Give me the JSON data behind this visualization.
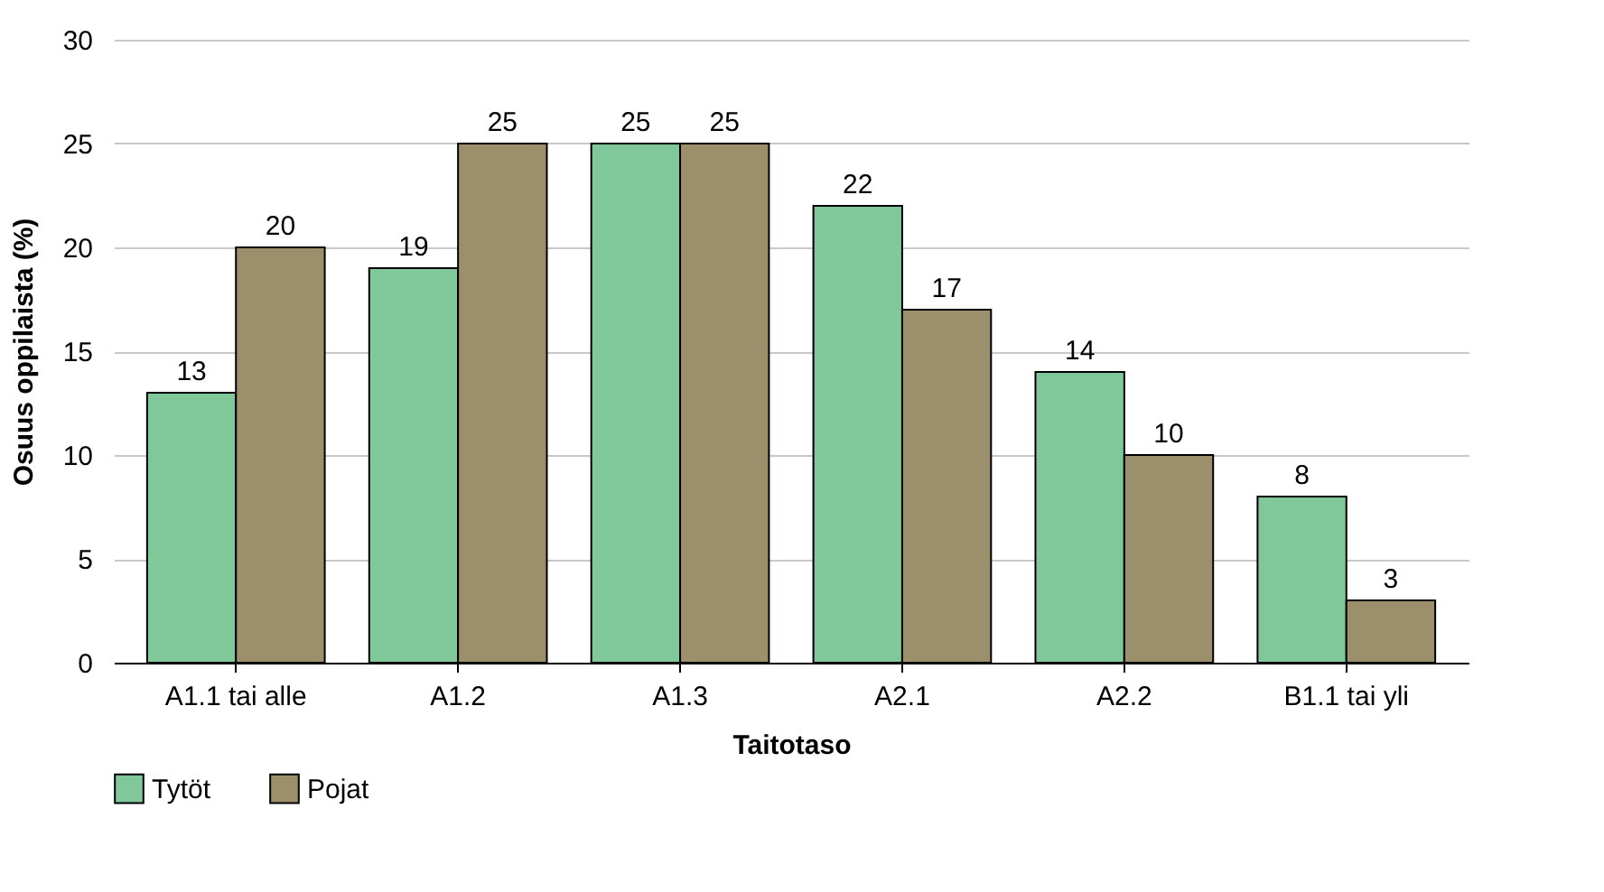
{
  "chart_data": {
    "type": "bar",
    "xlabel": "Taitotaso",
    "ylabel": "Osuus oppilaista (%)",
    "categories": [
      "A1.1 tai alle",
      "A1.2",
      "A1.3",
      "A2.1",
      "A2.2",
      "B1.1 tai yli"
    ],
    "series": [
      {
        "name": "Tytöt",
        "color": "#80c79a",
        "values": [
          13,
          19,
          25,
          22,
          14,
          8
        ]
      },
      {
        "name": "Pojat",
        "color": "#9c8f6c",
        "values": [
          20,
          25,
          25,
          17,
          10,
          3
        ]
      }
    ],
    "ylim": [
      0,
      30
    ],
    "yticks": [
      0,
      5,
      10,
      15,
      20,
      25,
      30
    ],
    "grid": "y",
    "legend": "bottom",
    "data_labels": true
  }
}
